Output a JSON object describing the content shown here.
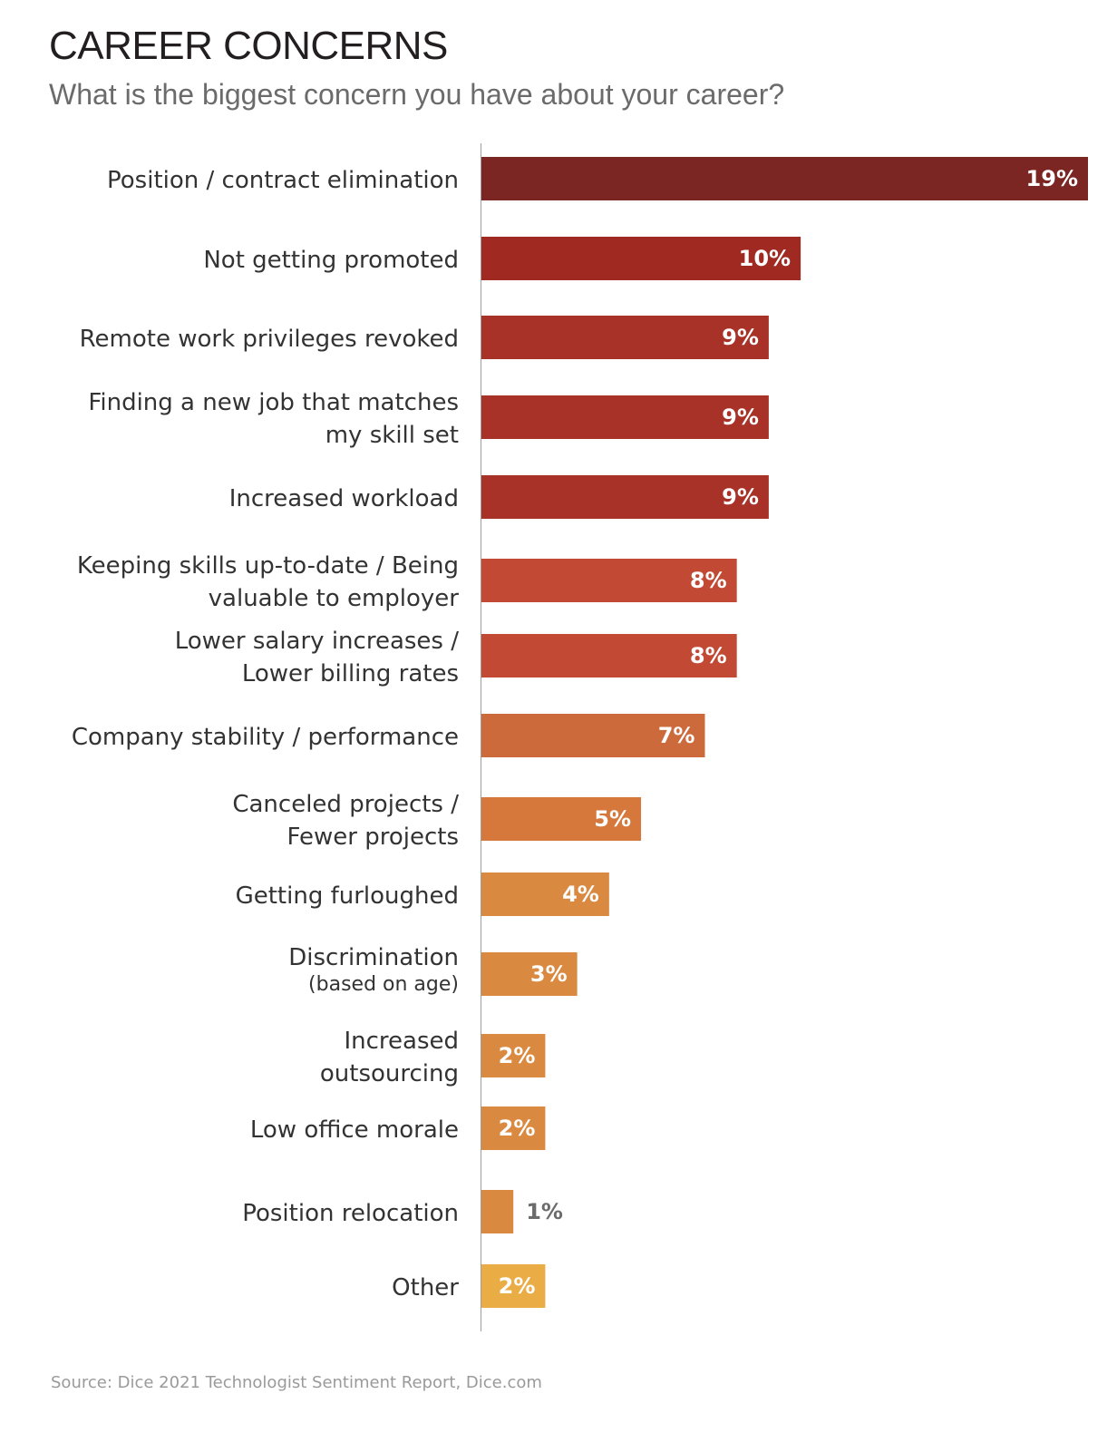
{
  "chart_data": {
    "type": "bar",
    "orientation": "horizontal",
    "title": "CAREER CONCERNS",
    "subtitle": "What is the biggest concern you have about your career?",
    "source": "Source: Dice 2021 Technologist Sentiment Report, Dice.com",
    "grid": false,
    "legend": "none",
    "xlim": [
      0,
      19
    ],
    "categories": [
      {
        "lines": [
          "Position / contract elimination"
        ],
        "value": 19,
        "label": "19%",
        "color": "#7b2622"
      },
      {
        "lines": [
          "Not getting promoted"
        ],
        "value": 10,
        "label": "10%",
        "color": "#a02a22"
      },
      {
        "lines": [
          "Remote work privileges revoked"
        ],
        "value": 9,
        "label": "9%",
        "color": "#a83228"
      },
      {
        "lines": [
          "Finding a new job that matches",
          "my skill set"
        ],
        "value": 9,
        "label": "9%",
        "color": "#a83228"
      },
      {
        "lines": [
          "Increased workload"
        ],
        "value": 9,
        "label": "9%",
        "color": "#a83228"
      },
      {
        "lines": [
          "Keeping skills up-to-date / Being",
          "valuable to employer"
        ],
        "value": 8,
        "label": "8%",
        "color": "#c24a35"
      },
      {
        "lines": [
          "Lower salary increases /",
          "Lower billing rates"
        ],
        "value": 8,
        "label": "8%",
        "color": "#c24a35"
      },
      {
        "lines": [
          "Company stability / performance"
        ],
        "value": 7,
        "label": "7%",
        "color": "#cc6a3c"
      },
      {
        "lines": [
          "Canceled projects /",
          "Fewer projects"
        ],
        "value": 5,
        "label": "5%",
        "color": "#d6783c"
      },
      {
        "lines": [
          "Getting furloughed"
        ],
        "value": 4,
        "label": "4%",
        "color": "#da8a40"
      },
      {
        "lines": [
          "Discrimination",
          "(based on age)"
        ],
        "value": 3,
        "label": "3%",
        "color": "#da8a40"
      },
      {
        "lines": [
          "Increased",
          "outsourcing"
        ],
        "value": 2,
        "label": "2%",
        "color": "#da8a40"
      },
      {
        "lines": [
          "Low office morale"
        ],
        "value": 2,
        "label": "2%",
        "color": "#da8a40"
      },
      {
        "lines": [
          "Position relocation"
        ],
        "value": 1,
        "label": "1%",
        "color": "#da8a40"
      },
      {
        "lines": [
          "Other"
        ],
        "value": 2,
        "label": "2%",
        "color": "#eaad45"
      }
    ]
  }
}
